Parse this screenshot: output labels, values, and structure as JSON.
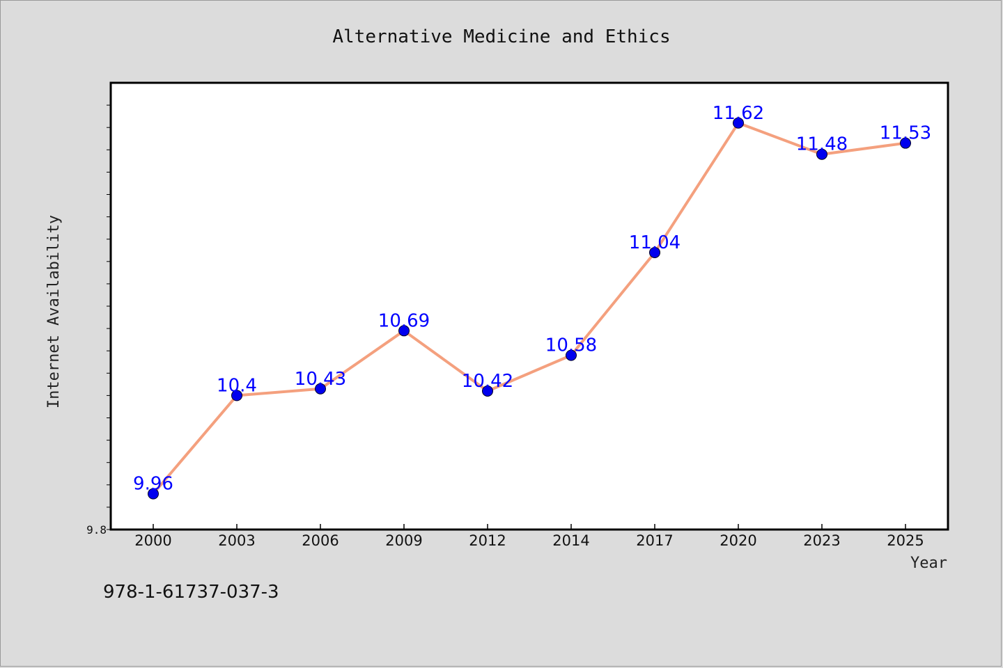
{
  "colors": {
    "background": "#dcdcdc",
    "plot_background": "#ffffff",
    "line": "#f4a07e",
    "marker": "#0000ee",
    "data_label": "#0000ff"
  },
  "isbn": "978-1-61737-037-3",
  "chart_data": {
    "type": "line",
    "title": "Alternative Medicine and Ethics",
    "xlabel": "Year",
    "ylabel": "Internet Availability",
    "categories": [
      "2000",
      "2003",
      "2006",
      "2009",
      "2012",
      "2014",
      "2017",
      "2020",
      "2023",
      "2025"
    ],
    "series": [
      {
        "values": [
          9.96,
          10.4,
          10.43,
          10.69,
          10.42,
          10.58,
          11.04,
          11.62,
          11.48,
          11.53
        ],
        "labels": [
          "9.96",
          "10.4",
          "10.43",
          "10.69",
          "10.42",
          "10.58",
          "11.04",
          "11.62",
          "11.48",
          "11.53"
        ]
      }
    ],
    "ylim": [
      9.8,
      11.8
    ],
    "ytick_labels": [
      {
        "value": 9.8,
        "label": "9.8"
      }
    ],
    "grid": false,
    "legend": "none"
  }
}
